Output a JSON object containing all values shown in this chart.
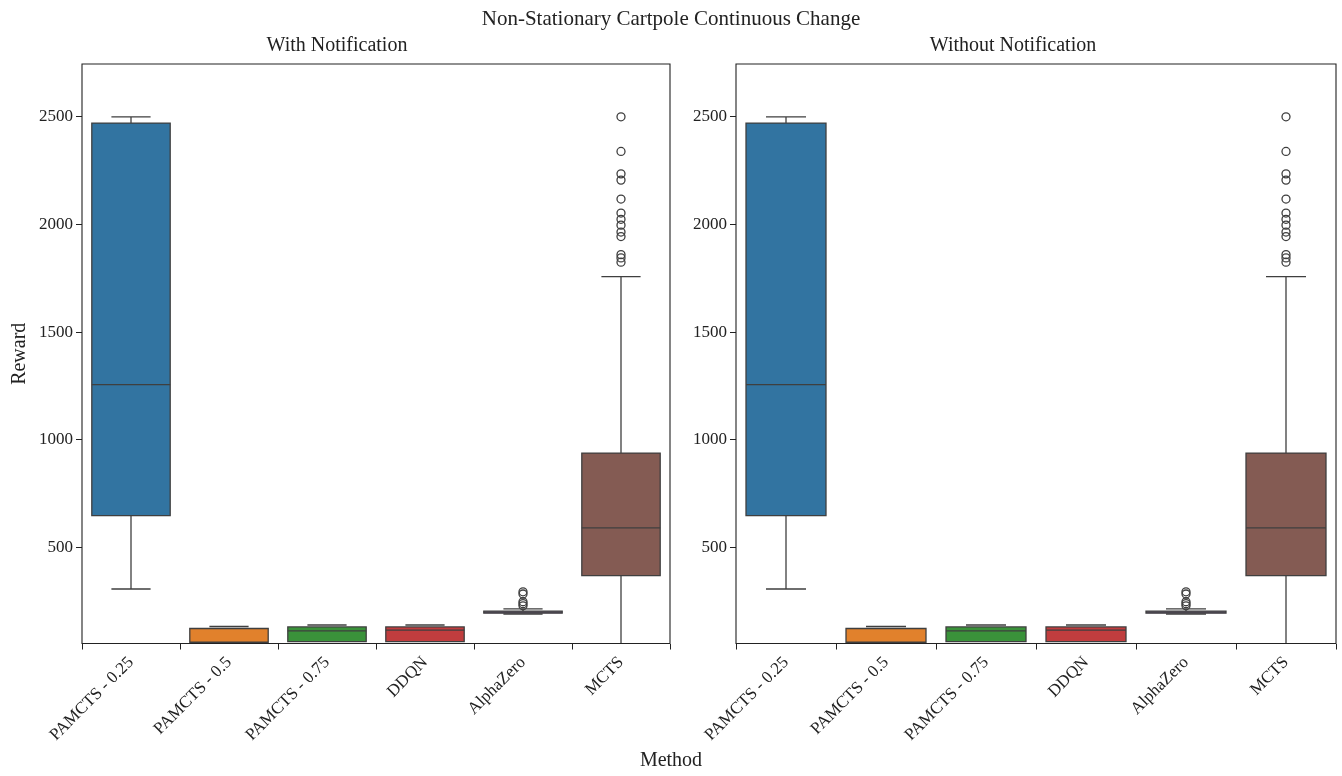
{
  "chart_data": [
    {
      "type": "box",
      "title": "With Notification",
      "ylabel": "Reward",
      "xlabel": "Method",
      "annotations": [
        "Non-Stationary Cartpole Continuous Change"
      ],
      "categories": [
        "PAMCTS - 0.25",
        "PAMCTS - 0.5",
        "PAMCTS - 0.75",
        "DDQN",
        "AlphaZero",
        "MCTS"
      ],
      "colors": [
        "#3274a1",
        "#e1812c",
        "#3a923a",
        "#c03d3e",
        "#9372b2",
        "#845b53"
      ],
      "boxes": [
        {
          "low": 308,
          "q1": 649,
          "median": 1257,
          "q3": 2471,
          "high": 2500
        },
        {
          "low": 55,
          "q1": 61,
          "median": 124,
          "q3": 125,
          "high": 134
        },
        {
          "low": 55,
          "q1": 64,
          "median": 114,
          "q3": 132,
          "high": 141
        },
        {
          "low": 55,
          "q1": 64,
          "median": 117,
          "q3": 132,
          "high": 141
        },
        {
          "low": 192,
          "q1": 196,
          "median": 201,
          "q3": 205,
          "high": 216,
          "outliers": [
            295,
            285,
            249,
            240,
            230
          ]
        },
        {
          "low": 55,
          "q1": 370,
          "median": 592,
          "q3": 939,
          "high": 1758,
          "outliers": [
            2500,
            2339,
            2235,
            2206,
            2118,
            2053,
            2024,
            1997,
            1965,
            1944,
            1860,
            1845,
            1825
          ]
        }
      ],
      "ylim": [
        55,
        2745
      ],
      "yticks": [
        500,
        1000,
        1500,
        2000,
        2500
      ],
      "grid": false,
      "legend": false
    },
    {
      "type": "box",
      "title": "Without Notification",
      "categories": [
        "PAMCTS - 0.25",
        "PAMCTS - 0.5",
        "PAMCTS - 0.75",
        "DDQN",
        "AlphaZero",
        "MCTS"
      ],
      "colors": [
        "#3274a1",
        "#e1812c",
        "#3a923a",
        "#c03d3e",
        "#9372b2",
        "#845b53"
      ],
      "boxes": [
        {
          "low": 308,
          "q1": 649,
          "median": 1257,
          "q3": 2471,
          "high": 2500
        },
        {
          "low": 55,
          "q1": 61,
          "median": 124,
          "q3": 125,
          "high": 134
        },
        {
          "low": 55,
          "q1": 64,
          "median": 114,
          "q3": 132,
          "high": 141
        },
        {
          "low": 55,
          "q1": 64,
          "median": 117,
          "q3": 132,
          "high": 141
        },
        {
          "low": 192,
          "q1": 196,
          "median": 201,
          "q3": 205,
          "high": 216,
          "outliers": [
            295,
            285,
            249,
            240,
            230
          ]
        },
        {
          "low": 55,
          "q1": 370,
          "median": 592,
          "q3": 939,
          "high": 1758,
          "outliers": [
            2500,
            2339,
            2235,
            2206,
            2118,
            2053,
            2024,
            1997,
            1965,
            1944,
            1860,
            1845,
            1825
          ]
        }
      ],
      "ylim": [
        55,
        2745
      ],
      "yticks": [
        500,
        1000,
        1500,
        2000,
        2500
      ],
      "grid": false,
      "legend": false
    }
  ]
}
